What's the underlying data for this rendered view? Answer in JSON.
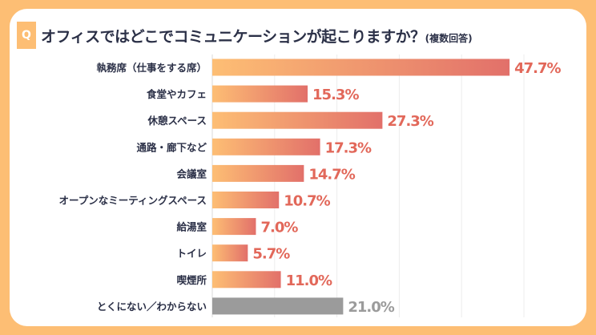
{
  "header": {
    "badge": "Q",
    "title": "オフィスではどこでコミュニケーションが起こりますか？",
    "note": "(複数回答)"
  },
  "colors": {
    "background": "#FDBE74",
    "gradient_start": "#FDBE74",
    "gradient_end": "#E2706A",
    "value_label": "#E2685A",
    "neutral": "#9B9B9B",
    "text": "#2b3047"
  },
  "chart_data": {
    "type": "bar",
    "orientation": "horizontal",
    "xlim": [
      0,
      50
    ],
    "grid": true,
    "unit": "%",
    "categories": [
      "執務席（仕事をする席）",
      "食堂やカフェ",
      "休憩スペース",
      "通路・廊下など",
      "会議室",
      "オープンなミーティングスペース",
      "給湯室",
      "トイレ",
      "喫煙所",
      "とくにない／わからない"
    ],
    "values": [
      47.7,
      15.3,
      27.3,
      17.3,
      14.7,
      10.7,
      7.0,
      5.7,
      11.0,
      21.0
    ],
    "labels": [
      "47.7%",
      "15.3%",
      "27.3%",
      "17.3%",
      "14.7%",
      "10.7%",
      "7.0%",
      "5.7%",
      "11.0%",
      "21.0%"
    ]
  }
}
